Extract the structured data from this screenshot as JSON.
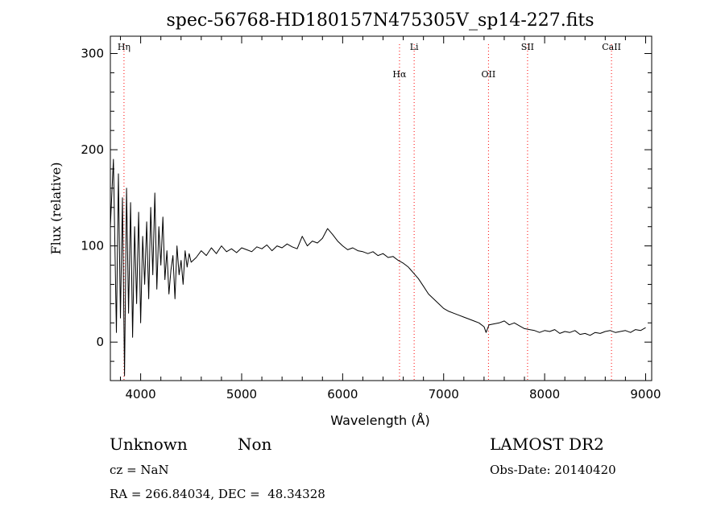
{
  "chart_data": {
    "type": "line",
    "title": "spec-56768-HD180157N475305V_sp14-227.fits",
    "xlabel": "Wavelength (Å)",
    "ylabel": "Flux (relative)",
    "xlim": [
      3700,
      9060
    ],
    "ylim": [
      -40,
      318
    ],
    "x_ticks": [
      4000,
      5000,
      6000,
      7000,
      8000,
      9000
    ],
    "y_ticks": [
      0,
      100,
      200,
      300
    ],
    "grid": false,
    "line_color": "#000000",
    "line_marker_color": "#ff0000",
    "lines": [
      {
        "label": "Hη",
        "x": 3835
      },
      {
        "label": "Hα",
        "x": 6563
      },
      {
        "label": "Li",
        "x": 6708
      },
      {
        "label": "OII",
        "x": 7444
      },
      {
        "label": "SII",
        "x": 7831
      },
      {
        "label": "CaII",
        "x": 8662
      }
    ],
    "series": [
      {
        "x": [
          3700,
          3730,
          3760,
          3780,
          3800,
          3820,
          3840,
          3860,
          3880,
          3900,
          3920,
          3940,
          3960,
          3980,
          4000,
          4020,
          4040,
          4060,
          4080,
          4100,
          4120,
          4140,
          4160,
          4180,
          4200,
          4220,
          4240,
          4260,
          4280,
          4300,
          4320,
          4340,
          4360,
          4380,
          4400,
          4420,
          4440,
          4460,
          4480,
          4500,
          4550,
          4600,
          4650,
          4700,
          4750,
          4800,
          4850,
          4900,
          4950,
          5000,
          5050,
          5100,
          5150,
          5200,
          5250,
          5300,
          5350,
          5400,
          5450,
          5500,
          5550,
          5600,
          5650,
          5700,
          5750,
          5800,
          5850,
          5900,
          5950,
          6000,
          6050,
          6100,
          6150,
          6200,
          6250,
          6300,
          6350,
          6400,
          6450,
          6500,
          6550,
          6600,
          6650,
          6700,
          6750,
          6800,
          6850,
          6900,
          6950,
          7000,
          7050,
          7100,
          7150,
          7200,
          7250,
          7300,
          7350,
          7400,
          7420,
          7450,
          7500,
          7550,
          7600,
          7650,
          7700,
          7750,
          7800,
          7850,
          7900,
          7950,
          8000,
          8050,
          8100,
          8150,
          8200,
          8250,
          8300,
          8350,
          8400,
          8450,
          8500,
          8550,
          8600,
          8650,
          8700,
          8750,
          8800,
          8850,
          8900,
          8950,
          9000
        ],
        "y": [
          120,
          190,
          10,
          175,
          25,
          150,
          -35,
          160,
          30,
          145,
          5,
          120,
          40,
          135,
          20,
          110,
          60,
          125,
          45,
          140,
          70,
          155,
          55,
          120,
          80,
          130,
          65,
          95,
          50,
          75,
          90,
          45,
          100,
          70,
          85,
          60,
          95,
          78,
          92,
          83,
          88,
          95,
          90,
          98,
          92,
          100,
          94,
          97,
          93,
          98,
          96,
          94,
          99,
          97,
          101,
          95,
          100,
          98,
          102,
          99,
          97,
          110,
          100,
          105,
          103,
          108,
          118,
          112,
          105,
          100,
          96,
          98,
          95,
          94,
          92,
          94,
          90,
          92,
          88,
          89,
          85,
          82,
          78,
          72,
          66,
          58,
          50,
          45,
          40,
          35,
          32,
          30,
          28,
          26,
          24,
          22,
          20,
          16,
          10,
          18,
          19,
          20,
          22,
          18,
          20,
          17,
          14,
          13,
          12,
          10,
          12,
          11,
          13,
          9,
          11,
          10,
          12,
          8,
          9,
          7,
          10,
          9,
          11,
          12,
          10,
          11,
          12,
          10,
          13,
          12,
          15
        ]
      }
    ]
  },
  "info": {
    "class_left": "Unknown",
    "class_right": "Non",
    "survey": "LAMOST DR2",
    "cz": "cz = NaN",
    "obs_date": "Obs-Date: 20140420",
    "radec": "RA = 266.84034, DEC =  48.34328"
  }
}
